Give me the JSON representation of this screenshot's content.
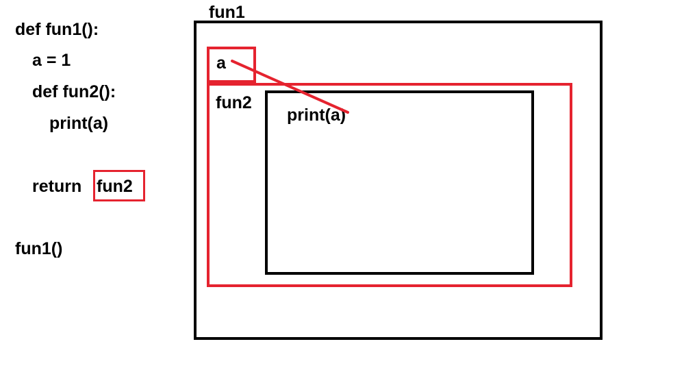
{
  "code": {
    "line1": "def fun1():",
    "line2": "a = 1",
    "line3": "def fun2():",
    "line4": "print(a)",
    "line5_keyword": "return",
    "line5_value": "fun2",
    "line6": "fun1()"
  },
  "diagram": {
    "outer_label": "fun1",
    "variable_label": "a",
    "inner_label": "fun2",
    "body_label": "print(a)"
  },
  "colors": {
    "highlight": "#e5232f",
    "outline": "#000000"
  }
}
